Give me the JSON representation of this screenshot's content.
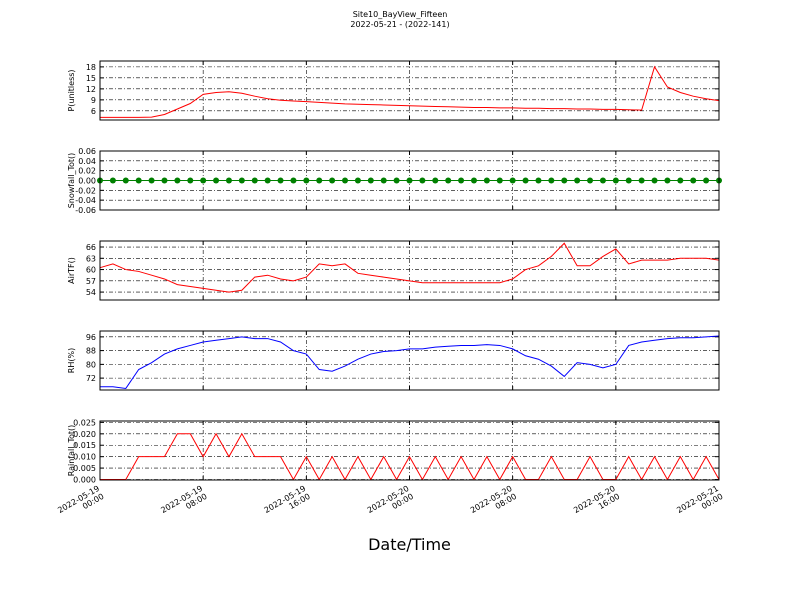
{
  "title": "Site10_BayView_Fifteen",
  "subtitle": "2022-05-21 - (2022-141)",
  "chart_data": [
    {
      "type": "line",
      "ylabel": "P(unitless)",
      "x": [
        "2022-05-19 00:00",
        "2022-05-19 01:00",
        "2022-05-19 02:00",
        "2022-05-19 03:00",
        "2022-05-19 04:00",
        "2022-05-19 05:00",
        "2022-05-19 06:00",
        "2022-05-19 07:00",
        "2022-05-19 08:00",
        "2022-05-19 09:00",
        "2022-05-19 10:00",
        "2022-05-19 11:00",
        "2022-05-19 12:00",
        "2022-05-19 13:00",
        "2022-05-19 14:00",
        "2022-05-19 15:00",
        "2022-05-19 16:00",
        "2022-05-19 17:00",
        "2022-05-19 18:00",
        "2022-05-19 19:00",
        "2022-05-19 20:00",
        "2022-05-19 21:00",
        "2022-05-19 22:00",
        "2022-05-19 23:00",
        "2022-05-20 00:00",
        "2022-05-20 01:00",
        "2022-05-20 02:00",
        "2022-05-20 03:00",
        "2022-05-20 04:00",
        "2022-05-20 05:00",
        "2022-05-20 06:00",
        "2022-05-20 07:00",
        "2022-05-20 08:00",
        "2022-05-20 09:00",
        "2022-05-20 10:00",
        "2022-05-20 11:00",
        "2022-05-20 12:00",
        "2022-05-20 13:00",
        "2022-05-20 14:00",
        "2022-05-20 15:00",
        "2022-05-20 16:00",
        "2022-05-20 17:00",
        "2022-05-20 18:00",
        "2022-05-20 19:00",
        "2022-05-20 20:00",
        "2022-05-20 21:00",
        "2022-05-20 22:00",
        "2022-05-20 23:00",
        "2022-05-21 00:00"
      ],
      "series": [
        {
          "color": "#ff0000",
          "values": [
            4.2,
            4.2,
            4.2,
            4.2,
            4.3,
            5.0,
            6.5,
            8.0,
            10.5,
            11.0,
            11.2,
            10.8,
            10.0,
            9.3,
            8.9,
            8.7,
            8.5,
            8.3,
            8.1,
            7.9,
            7.8,
            7.7,
            7.6,
            7.5,
            7.4,
            7.3,
            7.2,
            7.1,
            7.0,
            6.9,
            6.9,
            6.8,
            6.8,
            6.7,
            6.7,
            6.6,
            6.6,
            6.5,
            6.5,
            6.4,
            6.4,
            6.3,
            6.2,
            18.0,
            12.5,
            11.0,
            10.0,
            9.3,
            8.8
          ]
        }
      ],
      "xlim": [
        "2022-05-19 00:00",
        "2022-05-21 00:00"
      ],
      "xticks": [
        "2022-05-19 00:00",
        "2022-05-19 08:00",
        "2022-05-19 16:00",
        "2022-05-20 00:00",
        "2022-05-20 08:00",
        "2022-05-20 16:00",
        "2022-05-21 00:00"
      ],
      "ylim": [
        3.5,
        19.6
      ],
      "yticks": [
        6,
        9,
        12,
        15,
        18
      ],
      "grid": true
    },
    {
      "type": "line",
      "ylabel": "Snowfall_Tot()",
      "markers": true,
      "x": [
        "2022-05-19 00:00",
        "2022-05-19 01:00",
        "2022-05-19 02:00",
        "2022-05-19 03:00",
        "2022-05-19 04:00",
        "2022-05-19 05:00",
        "2022-05-19 06:00",
        "2022-05-19 07:00",
        "2022-05-19 08:00",
        "2022-05-19 09:00",
        "2022-05-19 10:00",
        "2022-05-19 11:00",
        "2022-05-19 12:00",
        "2022-05-19 13:00",
        "2022-05-19 14:00",
        "2022-05-19 15:00",
        "2022-05-19 16:00",
        "2022-05-19 17:00",
        "2022-05-19 18:00",
        "2022-05-19 19:00",
        "2022-05-19 20:00",
        "2022-05-19 21:00",
        "2022-05-19 22:00",
        "2022-05-19 23:00",
        "2022-05-20 00:00",
        "2022-05-20 01:00",
        "2022-05-20 02:00",
        "2022-05-20 03:00",
        "2022-05-20 04:00",
        "2022-05-20 05:00",
        "2022-05-20 06:00",
        "2022-05-20 07:00",
        "2022-05-20 08:00",
        "2022-05-20 09:00",
        "2022-05-20 10:00",
        "2022-05-20 11:00",
        "2022-05-20 12:00",
        "2022-05-20 13:00",
        "2022-05-20 14:00",
        "2022-05-20 15:00",
        "2022-05-20 16:00",
        "2022-05-20 17:00",
        "2022-05-20 18:00",
        "2022-05-20 19:00",
        "2022-05-20 20:00",
        "2022-05-20 21:00",
        "2022-05-20 22:00",
        "2022-05-20 23:00",
        "2022-05-21 00:00"
      ],
      "series": [
        {
          "color": "#008000",
          "values": [
            0,
            0,
            0,
            0,
            0,
            0,
            0,
            0,
            0,
            0,
            0,
            0,
            0,
            0,
            0,
            0,
            0,
            0,
            0,
            0,
            0,
            0,
            0,
            0,
            0,
            0,
            0,
            0,
            0,
            0,
            0,
            0,
            0,
            0,
            0,
            0,
            0,
            0,
            0,
            0,
            0,
            0,
            0,
            0,
            0,
            0,
            0,
            0,
            0
          ]
        }
      ],
      "xlim": [
        "2022-05-19 00:00",
        "2022-05-21 00:00"
      ],
      "xticks": [
        "2022-05-19 00:00",
        "2022-05-19 08:00",
        "2022-05-19 16:00",
        "2022-05-20 00:00",
        "2022-05-20 08:00",
        "2022-05-20 16:00",
        "2022-05-21 00:00"
      ],
      "ylim": [
        -0.06,
        0.06
      ],
      "yticks": [
        -0.06,
        -0.04,
        -0.02,
        {
          "value": 0,
          "label": "0.00"
        },
        0.02,
        0.04,
        0.06
      ],
      "grid": true
    },
    {
      "type": "line",
      "ylabel": "AirTF()",
      "x": [
        "2022-05-19 00:00",
        "2022-05-19 01:00",
        "2022-05-19 02:00",
        "2022-05-19 03:00",
        "2022-05-19 04:00",
        "2022-05-19 05:00",
        "2022-05-19 06:00",
        "2022-05-19 07:00",
        "2022-05-19 08:00",
        "2022-05-19 09:00",
        "2022-05-19 10:00",
        "2022-05-19 11:00",
        "2022-05-19 12:00",
        "2022-05-19 13:00",
        "2022-05-19 14:00",
        "2022-05-19 15:00",
        "2022-05-19 16:00",
        "2022-05-19 17:00",
        "2022-05-19 18:00",
        "2022-05-19 19:00",
        "2022-05-19 20:00",
        "2022-05-19 21:00",
        "2022-05-19 22:00",
        "2022-05-19 23:00",
        "2022-05-20 00:00",
        "2022-05-20 01:00",
        "2022-05-20 02:00",
        "2022-05-20 03:00",
        "2022-05-20 04:00",
        "2022-05-20 05:00",
        "2022-05-20 06:00",
        "2022-05-20 07:00",
        "2022-05-20 08:00",
        "2022-05-20 09:00",
        "2022-05-20 10:00",
        "2022-05-20 11:00",
        "2022-05-20 12:00",
        "2022-05-20 13:00",
        "2022-05-20 14:00",
        "2022-05-20 15:00",
        "2022-05-20 16:00",
        "2022-05-20 17:00",
        "2022-05-20 18:00",
        "2022-05-20 19:00",
        "2022-05-20 20:00",
        "2022-05-20 21:00",
        "2022-05-20 22:00",
        "2022-05-20 23:00",
        "2022-05-21 00:00"
      ],
      "series": [
        {
          "color": "#ff0000",
          "values": [
            60.5,
            61.5,
            60,
            59.5,
            58.5,
            57.5,
            56,
            55.5,
            55,
            54.5,
            54,
            54.5,
            58,
            58.5,
            57.5,
            57,
            58,
            61.5,
            61,
            61.5,
            59,
            58.5,
            58,
            57.5,
            57,
            56.5,
            56.5,
            56.5,
            56.5,
            56.5,
            56.5,
            56.5,
            57.5,
            60,
            61,
            63.5,
            67,
            61,
            61,
            63.5,
            65.5,
            61.5,
            62.5,
            62.5,
            62.5,
            63,
            63,
            63,
            62.5
          ]
        }
      ],
      "xlim": [
        "2022-05-19 00:00",
        "2022-05-21 00:00"
      ],
      "xticks": [
        "2022-05-19 00:00",
        "2022-05-19 08:00",
        "2022-05-19 16:00",
        "2022-05-20 00:00",
        "2022-05-20 08:00",
        "2022-05-20 16:00",
        "2022-05-21 00:00"
      ],
      "ylim": [
        51.9,
        67.6
      ],
      "yticks": [
        54,
        57,
        60,
        63,
        66
      ],
      "grid": true
    },
    {
      "type": "line",
      "ylabel": "RH(%)",
      "x": [
        "2022-05-19 00:00",
        "2022-05-19 01:00",
        "2022-05-19 02:00",
        "2022-05-19 03:00",
        "2022-05-19 04:00",
        "2022-05-19 05:00",
        "2022-05-19 06:00",
        "2022-05-19 07:00",
        "2022-05-19 08:00",
        "2022-05-19 09:00",
        "2022-05-19 10:00",
        "2022-05-19 11:00",
        "2022-05-19 12:00",
        "2022-05-19 13:00",
        "2022-05-19 14:00",
        "2022-05-19 15:00",
        "2022-05-19 16:00",
        "2022-05-19 17:00",
        "2022-05-19 18:00",
        "2022-05-19 19:00",
        "2022-05-19 20:00",
        "2022-05-19 21:00",
        "2022-05-19 22:00",
        "2022-05-19 23:00",
        "2022-05-20 00:00",
        "2022-05-20 01:00",
        "2022-05-20 02:00",
        "2022-05-20 03:00",
        "2022-05-20 04:00",
        "2022-05-20 05:00",
        "2022-05-20 06:00",
        "2022-05-20 07:00",
        "2022-05-20 08:00",
        "2022-05-20 09:00",
        "2022-05-20 10:00",
        "2022-05-20 11:00",
        "2022-05-20 12:00",
        "2022-05-20 13:00",
        "2022-05-20 14:00",
        "2022-05-20 15:00",
        "2022-05-20 16:00",
        "2022-05-20 17:00",
        "2022-05-20 18:00",
        "2022-05-20 19:00",
        "2022-05-20 20:00",
        "2022-05-20 21:00",
        "2022-05-20 22:00",
        "2022-05-20 23:00",
        "2022-05-21 00:00"
      ],
      "series": [
        {
          "color": "#0000ff",
          "values": [
            67,
            67,
            66,
            77,
            81,
            86,
            89,
            91,
            93,
            94,
            95,
            96,
            95,
            95,
            93,
            88,
            86,
            77,
            76,
            79,
            83,
            86,
            87.5,
            88,
            89,
            89,
            90,
            90.5,
            91,
            91,
            91.5,
            91,
            89,
            85,
            83,
            79,
            73,
            81,
            80,
            78,
            80,
            91,
            93,
            94,
            95,
            95.5,
            95.5,
            96,
            96.5
          ]
        }
      ],
      "xlim": [
        "2022-05-19 00:00",
        "2022-05-21 00:00"
      ],
      "xticks": [
        "2022-05-19 00:00",
        "2022-05-19 08:00",
        "2022-05-19 16:00",
        "2022-05-20 00:00",
        "2022-05-20 08:00",
        "2022-05-20 16:00",
        "2022-05-21 00:00"
      ],
      "ylim": [
        65.1,
        99.4
      ],
      "yticks": [
        72,
        80,
        88,
        96
      ],
      "grid": true
    },
    {
      "type": "line",
      "ylabel": "Rainfall_Tot()",
      "xlabel": "Date/Time",
      "x": [
        "2022-05-19 00:00",
        "2022-05-19 01:00",
        "2022-05-19 02:00",
        "2022-05-19 03:00",
        "2022-05-19 04:00",
        "2022-05-19 05:00",
        "2022-05-19 06:00",
        "2022-05-19 07:00",
        "2022-05-19 08:00",
        "2022-05-19 09:00",
        "2022-05-19 10:00",
        "2022-05-19 11:00",
        "2022-05-19 12:00",
        "2022-05-19 13:00",
        "2022-05-19 14:00",
        "2022-05-19 15:00",
        "2022-05-19 16:00",
        "2022-05-19 17:00",
        "2022-05-19 18:00",
        "2022-05-19 19:00",
        "2022-05-19 20:00",
        "2022-05-19 21:00",
        "2022-05-19 22:00",
        "2022-05-19 23:00",
        "2022-05-20 00:00",
        "2022-05-20 01:00",
        "2022-05-20 02:00",
        "2022-05-20 03:00",
        "2022-05-20 04:00",
        "2022-05-20 05:00",
        "2022-05-20 06:00",
        "2022-05-20 07:00",
        "2022-05-20 08:00",
        "2022-05-20 09:00",
        "2022-05-20 10:00",
        "2022-05-20 11:00",
        "2022-05-20 12:00",
        "2022-05-20 13:00",
        "2022-05-20 14:00",
        "2022-05-20 15:00",
        "2022-05-20 16:00",
        "2022-05-20 17:00",
        "2022-05-20 18:00",
        "2022-05-20 19:00",
        "2022-05-20 20:00",
        "2022-05-20 21:00",
        "2022-05-20 22:00",
        "2022-05-20 23:00",
        "2022-05-21 00:00"
      ],
      "series": [
        {
          "color": "#ff0000",
          "values": [
            0,
            0,
            0,
            0.01,
            0.01,
            0.01,
            0.02,
            0.02,
            0.01,
            0.02,
            0.01,
            0.02,
            0.01,
            0.01,
            0.01,
            0,
            0.01,
            0,
            0.01,
            0,
            0.01,
            0,
            0.01,
            0,
            0.01,
            0,
            0.01,
            0,
            0.01,
            0,
            0.01,
            0,
            0.01,
            0,
            0,
            0.01,
            0,
            0,
            0.01,
            0,
            0,
            0.01,
            0,
            0.01,
            0,
            0.01,
            0,
            0.01,
            0
          ]
        }
      ],
      "xlim": [
        "2022-05-19 00:00",
        "2022-05-21 00:00"
      ],
      "xticks": [
        {
          "value": "2022-05-19 00:00",
          "label": "2022-05-19\n00:00"
        },
        {
          "value": "2022-05-19 08:00",
          "label": "2022-05-19\n08:00"
        },
        {
          "value": "2022-05-19 16:00",
          "label": "2022-05-19\n16:00"
        },
        {
          "value": "2022-05-20 00:00",
          "label": "2022-05-20\n00:00"
        },
        {
          "value": "2022-05-20 08:00",
          "label": "2022-05-20\n08:00"
        },
        {
          "value": "2022-05-20 16:00",
          "label": "2022-05-20\n16:00"
        },
        {
          "value": "2022-05-21 00:00",
          "label": "2022-05-21\n00:00"
        }
      ],
      "ylim": [
        -0.0002,
        0.0256
      ],
      "yticks": [
        {
          "value": 0,
          "label": "0.000"
        },
        0.005,
        {
          "value": 0.01,
          "label": "0.010"
        },
        0.015,
        {
          "value": 0.02,
          "label": "0.020"
        },
        0.025
      ],
      "grid": true
    }
  ]
}
